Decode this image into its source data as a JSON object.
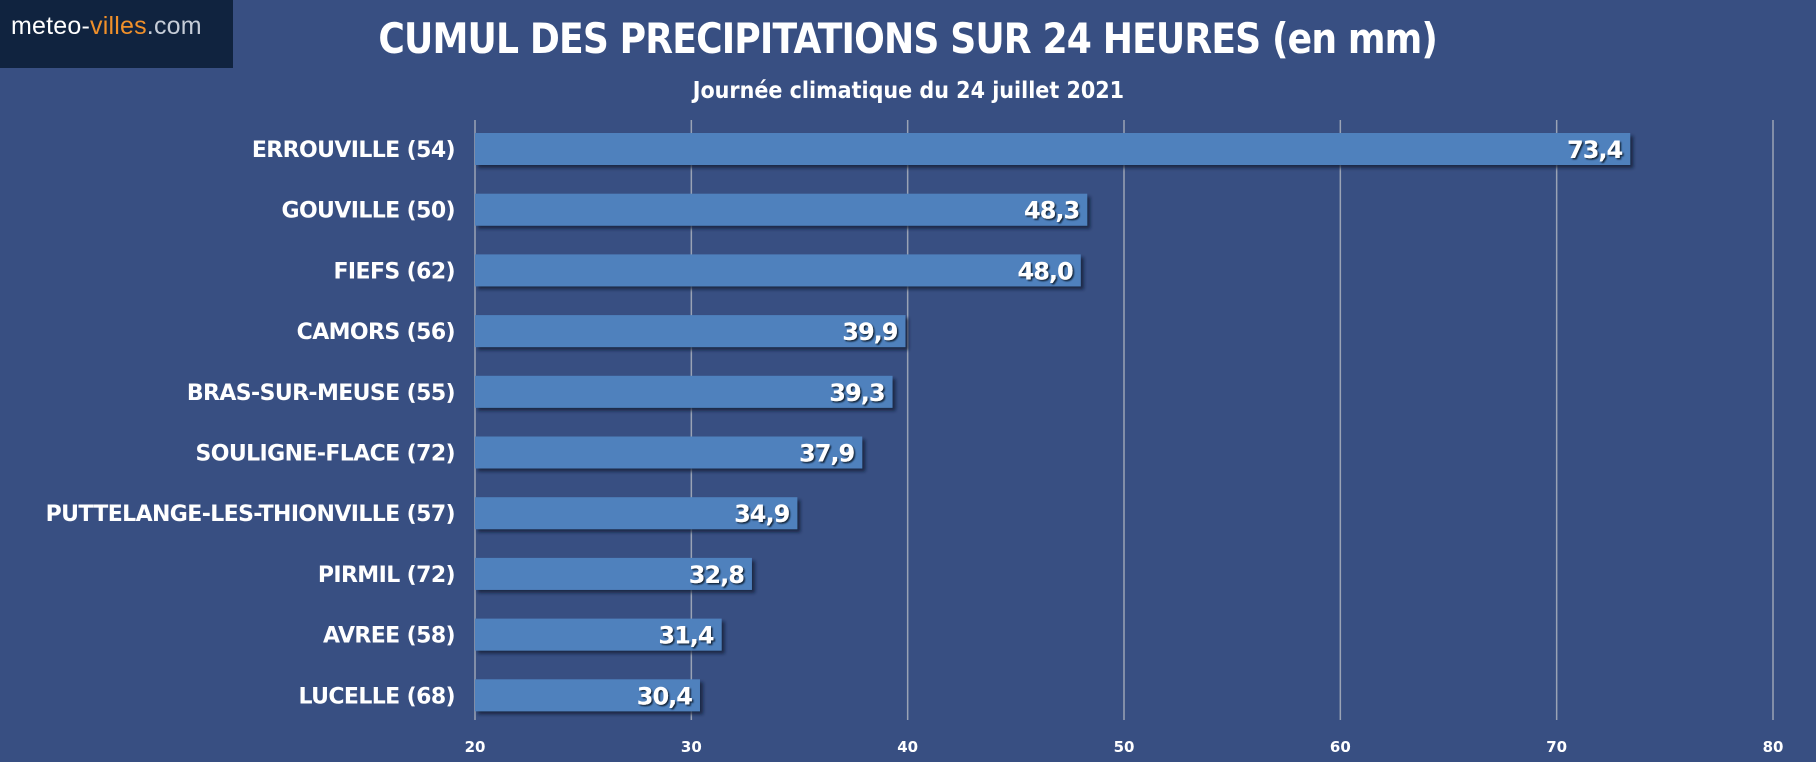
{
  "logo": {
    "part1": "meteo-",
    "part2": "villes",
    "part3": ".com"
  },
  "header": {
    "title": "CUMUL DES PRECIPITATIONS SUR 24 HEURES (en mm)",
    "subtitle": "Journée climatique du 24 juillet 2021"
  },
  "colors": {
    "background": "#384f82",
    "bar": "#4f81bd",
    "grid": "#9aa3b5",
    "text": "#ffffff",
    "logo_bg": "#10233f",
    "logo_accent": "#f0902a"
  },
  "chart_data": {
    "type": "bar",
    "orientation": "horizontal",
    "title": "CUMUL DES PRECIPITATIONS SUR 24 HEURES (en mm)",
    "subtitle": "Journée climatique du 24 juillet 2021",
    "categories": [
      "ERROUVILLE (54)",
      "GOUVILLE (50)",
      "FIEFS (62)",
      "CAMORS (56)",
      "BRAS-SUR-MEUSE (55)",
      "SOULIGNE-FLACE (72)",
      "PUTTELANGE-LES-THIONVILLE (57)",
      "PIRMIL (72)",
      "AVREE (58)",
      "LUCELLE (68)"
    ],
    "values": [
      73.4,
      48.3,
      48.0,
      39.9,
      39.3,
      37.9,
      34.9,
      32.8,
      31.4,
      30.4
    ],
    "value_labels": [
      "73,4",
      "48,3",
      "48,0",
      "39,9",
      "39,3",
      "37,9",
      "34,9",
      "32,8",
      "31,4",
      "30,4"
    ],
    "xlim": [
      20,
      80
    ],
    "xticks": [
      20,
      30,
      40,
      50,
      60,
      70,
      80
    ],
    "grid": true,
    "xlabel": "",
    "ylabel": ""
  }
}
